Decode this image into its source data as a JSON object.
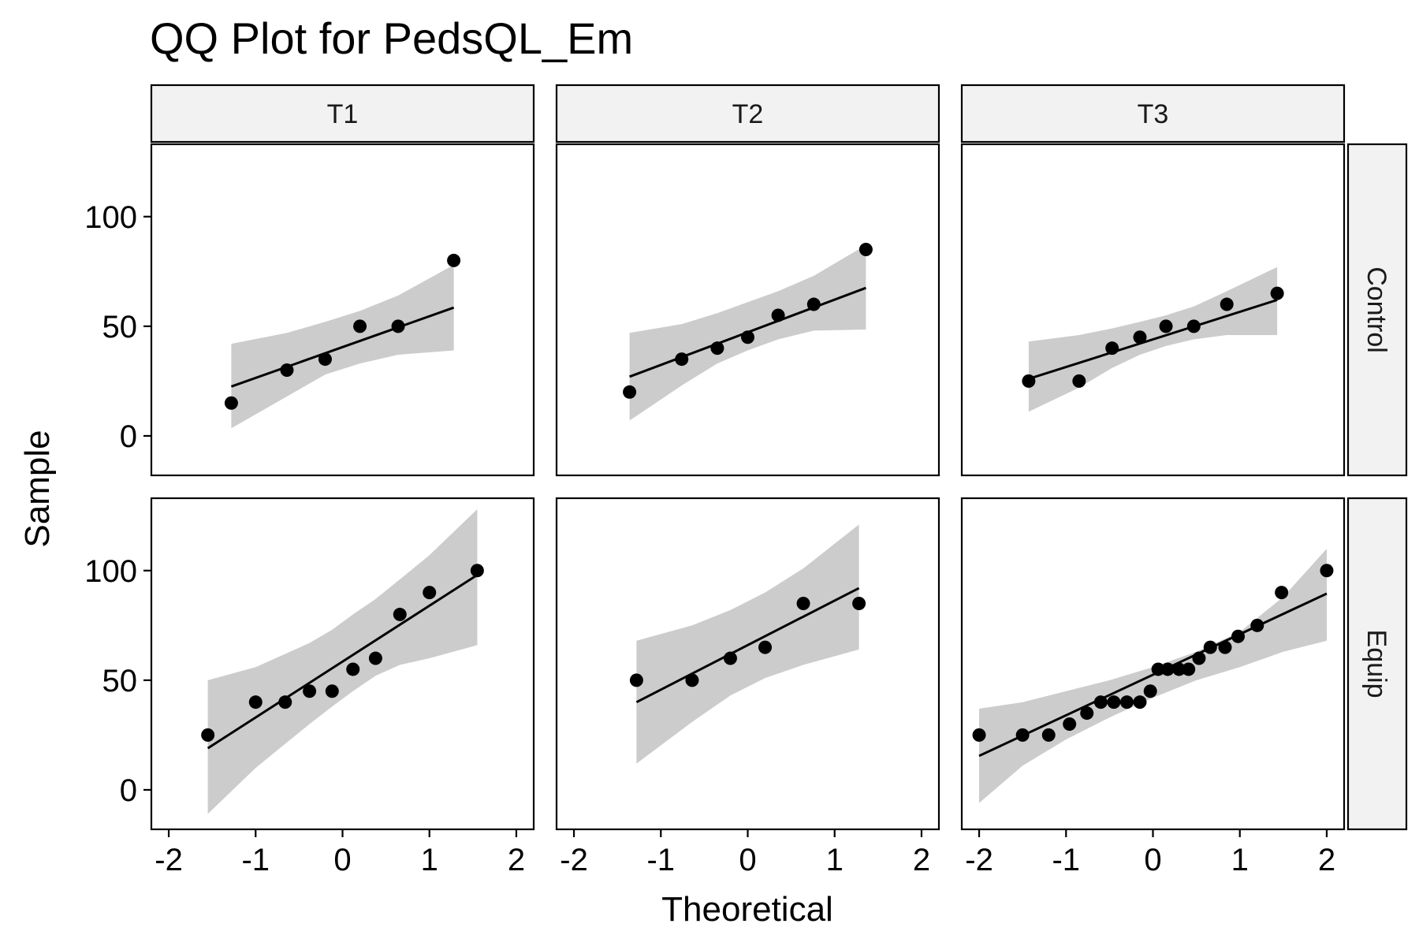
{
  "chart_data": {
    "type": "scatter",
    "subtype": "qq-facet",
    "title": "QQ Plot for PedsQL_Em",
    "xlabel": "Theoretical",
    "ylabel": "Sample",
    "xlim": [
      -2.2,
      2.2
    ],
    "ylim": [
      -18,
      133
    ],
    "x_ticks": [
      -2,
      -1,
      0,
      1,
      2
    ],
    "x_tick_labels": [
      "-2",
      "-1",
      "0",
      "1",
      "2"
    ],
    "y_ticks": [
      0,
      50,
      100
    ],
    "y_tick_labels": [
      "0",
      "50",
      "100"
    ],
    "columns": [
      "T1",
      "T2",
      "T3"
    ],
    "rows": [
      "Control",
      "Equip"
    ],
    "band_color": "#cccccc",
    "point_color": "#000000",
    "panels": [
      {
        "row": "Control",
        "col": "T1",
        "x": [
          -1.28,
          -0.64,
          -0.2,
          0.2,
          0.64,
          1.28
        ],
        "y": [
          15,
          30,
          35,
          50,
          50,
          80
        ],
        "line": {
          "x": [
            -1.28,
            1.28
          ],
          "y": [
            22.5,
            58.5
          ]
        },
        "band": {
          "x": [
            -1.28,
            -0.64,
            -0.2,
            0.2,
            0.64,
            1.28
          ],
          "lower": [
            3.5,
            18,
            28,
            33,
            37,
            39
          ],
          "upper": [
            42,
            47,
            52,
            57,
            64,
            78
          ]
        }
      },
      {
        "row": "Control",
        "col": "T2",
        "x": [
          -1.36,
          -0.76,
          -0.35,
          0,
          0.35,
          0.76,
          1.36
        ],
        "y": [
          20,
          35,
          40,
          45,
          55,
          60,
          85
        ],
        "line": {
          "x": [
            -1.36,
            1.36
          ],
          "y": [
            27,
            67.5
          ]
        },
        "band": {
          "x": [
            -1.36,
            -0.76,
            -0.35,
            0,
            0.35,
            0.76,
            1.36
          ],
          "lower": [
            7,
            23,
            33,
            39,
            44,
            48,
            48.5
          ],
          "upper": [
            47,
            51,
            56,
            61,
            66,
            73,
            87
          ]
        }
      },
      {
        "row": "Control",
        "col": "T3",
        "x": [
          -1.43,
          -0.85,
          -0.47,
          -0.15,
          0.15,
          0.47,
          0.85,
          1.43
        ],
        "y": [
          25,
          25,
          40,
          45,
          50,
          50,
          60,
          65
        ],
        "line": {
          "x": [
            -1.43,
            1.43
          ],
          "y": [
            26,
            62
          ]
        },
        "band": {
          "x": [
            -1.43,
            -0.85,
            -0.47,
            -0.15,
            0.15,
            0.47,
            0.85,
            1.43
          ],
          "lower": [
            11,
            22,
            31,
            37,
            41,
            44,
            46,
            46
          ],
          "upper": [
            43,
            46,
            49,
            52,
            55,
            59,
            66,
            77
          ]
        }
      },
      {
        "row": "Equip",
        "col": "T1",
        "x": [
          -1.55,
          -1.0,
          -0.66,
          -0.38,
          -0.12,
          0.12,
          0.38,
          0.66,
          1.0,
          1.55
        ],
        "y": [
          25,
          40,
          40,
          45,
          45,
          55,
          60,
          80,
          90,
          100
        ],
        "line": {
          "x": [
            -1.55,
            1.55
          ],
          "y": [
            19,
            98
          ]
        },
        "band": {
          "x": [
            -1.55,
            -1.0,
            -0.66,
            -0.38,
            -0.12,
            0.12,
            0.38,
            0.66,
            1.0,
            1.55
          ],
          "lower": [
            -11,
            10,
            21,
            30,
            38,
            45,
            52,
            57,
            60,
            66
          ],
          "upper": [
            50,
            56,
            62,
            67,
            73,
            80,
            87,
            96,
            107,
            128
          ]
        }
      },
      {
        "row": "Equip",
        "col": "T2",
        "x": [
          -1.28,
          -0.64,
          -0.2,
          0.2,
          0.64,
          1.28
        ],
        "y": [
          50,
          50,
          60,
          65,
          85,
          85
        ],
        "line": {
          "x": [
            -1.28,
            1.28
          ],
          "y": [
            40,
            92
          ]
        },
        "band": {
          "x": [
            -1.28,
            -0.64,
            -0.2,
            0.2,
            0.64,
            1.28
          ],
          "lower": [
            12,
            31,
            43,
            51,
            57,
            64
          ],
          "upper": [
            68,
            75,
            82,
            90,
            101,
            121
          ]
        }
      },
      {
        "row": "Equip",
        "col": "T3",
        "x": [
          -2.0,
          -1.5,
          -1.2,
          -0.96,
          -0.76,
          -0.6,
          -0.45,
          -0.3,
          -0.15,
          -0.03,
          0.06,
          0.17,
          0.3,
          0.41,
          0.53,
          0.66,
          0.83,
          0.98,
          1.2,
          1.48,
          2.0
        ],
        "y": [
          25,
          25,
          25,
          30,
          35,
          40,
          40,
          40,
          40,
          45,
          55,
          55,
          55,
          55,
          60,
          65,
          65,
          70,
          75,
          90,
          100
        ],
        "line": {
          "x": [
            -2.0,
            2.0
          ],
          "y": [
            15.5,
            89.5
          ]
        },
        "band": {
          "x": [
            -2.0,
            -1.5,
            -1.0,
            -0.5,
            0,
            0.5,
            1.0,
            1.5,
            2.0
          ],
          "lower": [
            -6,
            11,
            23,
            33,
            42,
            50,
            56,
            63,
            68
          ],
          "upper": [
            37,
            40,
            45,
            50,
            56,
            63,
            72,
            88,
            110
          ]
        }
      }
    ]
  }
}
